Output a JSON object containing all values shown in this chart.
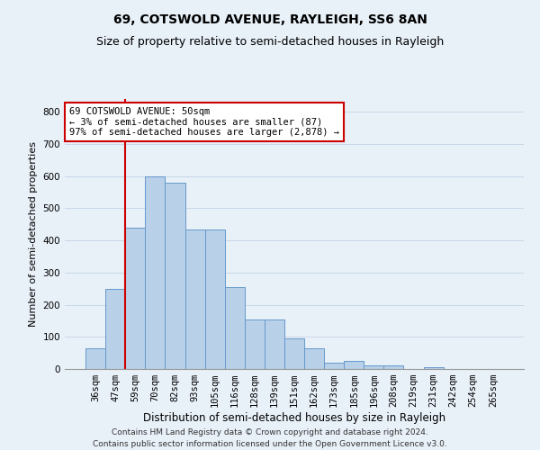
{
  "title": "69, COTSWOLD AVENUE, RAYLEIGH, SS6 8AN",
  "subtitle": "Size of property relative to semi-detached houses in Rayleigh",
  "xlabel": "Distribution of semi-detached houses by size in Rayleigh",
  "ylabel": "Number of semi-detached properties",
  "categories": [
    "36sqm",
    "47sqm",
    "59sqm",
    "70sqm",
    "82sqm",
    "93sqm",
    "105sqm",
    "116sqm",
    "128sqm",
    "139sqm",
    "151sqm",
    "162sqm",
    "173sqm",
    "185sqm",
    "196sqm",
    "208sqm",
    "219sqm",
    "231sqm",
    "242sqm",
    "254sqm",
    "265sqm"
  ],
  "values": [
    65,
    250,
    440,
    600,
    580,
    435,
    435,
    255,
    155,
    155,
    95,
    65,
    20,
    25,
    10,
    10,
    0,
    5,
    0,
    0,
    0
  ],
  "bar_color": "#b8d0e8",
  "bar_edge_color": "#6699cc",
  "property_line_x": 1.5,
  "property_line_label": "69 COTSWOLD AVENUE: 50sqm",
  "annotation_smaller": "← 3% of semi-detached houses are smaller (87)",
  "annotation_larger": "97% of semi-detached houses are larger (2,878) →",
  "annotation_box_facecolor": "#ffffff",
  "annotation_box_edgecolor": "#cc0000",
  "ylim": [
    0,
    840
  ],
  "yticks": [
    0,
    100,
    200,
    300,
    400,
    500,
    600,
    700,
    800
  ],
  "grid_color": "#c8d8e8",
  "background_color": "#e8f0f8",
  "footer_line1": "Contains HM Land Registry data © Crown copyright and database right 2024.",
  "footer_line2": "Contains public sector information licensed under the Open Government Licence v3.0.",
  "title_fontsize": 10,
  "subtitle_fontsize": 9,
  "xlabel_fontsize": 8.5,
  "ylabel_fontsize": 8,
  "tick_fontsize": 7.5,
  "annotation_fontsize": 7.5,
  "footer_fontsize": 6.5,
  "property_line_color": "#cc0000"
}
